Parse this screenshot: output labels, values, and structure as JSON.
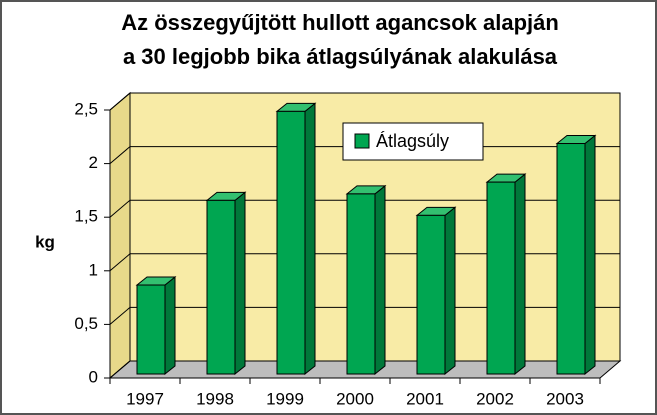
{
  "chart_data": {
    "type": "bar",
    "title": "Az összegyűjtött hullott agancsok alapján",
    "subtitle": "a 30 legjobb bika átlagsúlyának alakulása",
    "ylabel": "kg",
    "categories": [
      "1997",
      "1998",
      "1999",
      "2000",
      "2001",
      "2002",
      "2003"
    ],
    "series": [
      {
        "name": "Átlagsúly",
        "color": "#00a651",
        "values": [
          0.83,
          1.62,
          2.45,
          1.68,
          1.48,
          1.79,
          2.15
        ]
      }
    ],
    "ylim": [
      0,
      2.5
    ],
    "yticks": [
      0,
      {
        "value": 0.5,
        "label": "0,5"
      },
      1,
      {
        "value": 1.5,
        "label": "1,5"
      },
      2,
      {
        "value": 2.5,
        "label": "2,5"
      }
    ],
    "grid": true,
    "legend": "top-center"
  }
}
